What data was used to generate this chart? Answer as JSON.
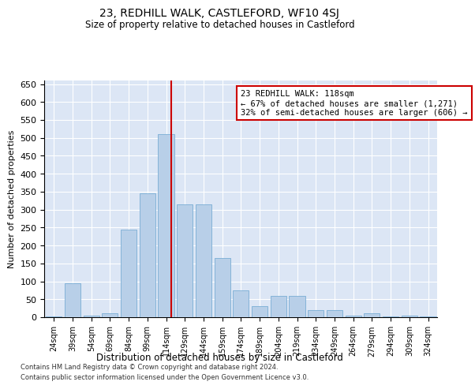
{
  "title": "23, REDHILL WALK, CASTLEFORD, WF10 4SJ",
  "subtitle": "Size of property relative to detached houses in Castleford",
  "xlabel": "Distribution of detached houses by size in Castleford",
  "ylabel": "Number of detached properties",
  "categories": [
    "24sqm",
    "39sqm",
    "54sqm",
    "69sqm",
    "84sqm",
    "99sqm",
    "114sqm",
    "129sqm",
    "144sqm",
    "159sqm",
    "174sqm",
    "189sqm",
    "204sqm",
    "219sqm",
    "234sqm",
    "249sqm",
    "264sqm",
    "279sqm",
    "294sqm",
    "309sqm",
    "324sqm"
  ],
  "values": [
    3,
    95,
    5,
    10,
    245,
    345,
    510,
    315,
    315,
    165,
    75,
    30,
    60,
    60,
    20,
    20,
    5,
    10,
    2,
    5,
    3
  ],
  "bar_color": "#b8cfe8",
  "bar_edge_color": "#7aadd4",
  "annotation_text": "23 REDHILL WALK: 118sqm\n← 67% of detached houses are smaller (1,271)\n32% of semi-detached houses are larger (606) →",
  "annotation_box_color": "#ffffff",
  "annotation_box_edge_color": "#cc0000",
  "vline_color": "#cc0000",
  "ylim": [
    0,
    660
  ],
  "yticks": [
    0,
    50,
    100,
    150,
    200,
    250,
    300,
    350,
    400,
    450,
    500,
    550,
    600,
    650
  ],
  "background_color": "#dce6f5",
  "grid_color": "#ffffff",
  "footer_line1": "Contains HM Land Registry data © Crown copyright and database right 2024.",
  "footer_line2": "Contains public sector information licensed under the Open Government Licence v3.0."
}
